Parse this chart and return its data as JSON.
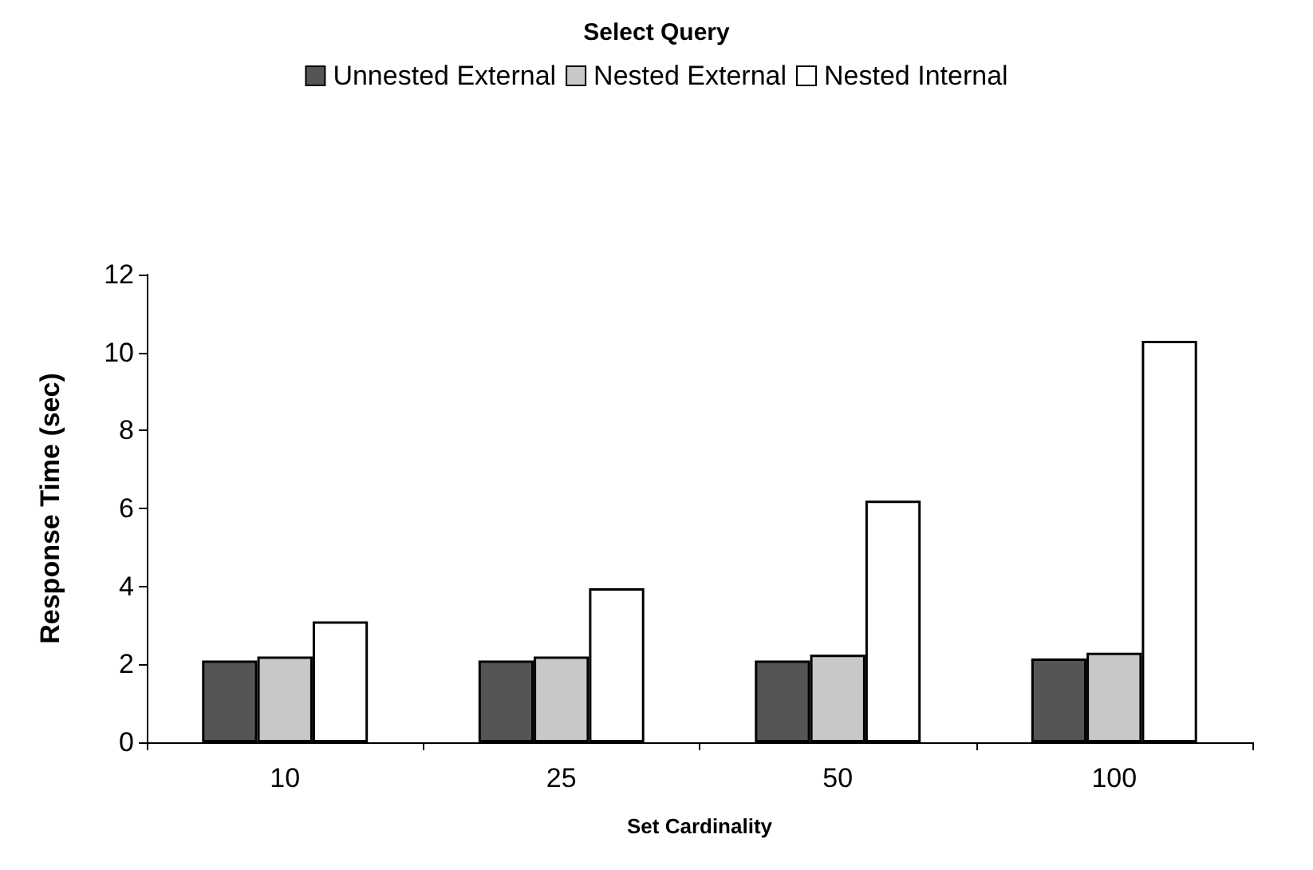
{
  "chart_data": {
    "type": "bar",
    "title": "Select Query",
    "xlabel": "Set Cardinality",
    "ylabel": "Response Time (sec)",
    "categories": [
      "10",
      "25",
      "50",
      "100"
    ],
    "series": [
      {
        "name": "Unnested External",
        "color": "#555555",
        "values": [
          2.1,
          2.1,
          2.1,
          2.15
        ]
      },
      {
        "name": "Nested External",
        "color": "#c8c8c8",
        "values": [
          2.2,
          2.2,
          2.25,
          2.3
        ]
      },
      {
        "name": "Nested Internal",
        "color": "#ffffff",
        "values": [
          3.1,
          3.95,
          6.2,
          10.3
        ]
      }
    ],
    "ylim": [
      0,
      12
    ],
    "yticks": [
      0,
      2,
      4,
      6,
      8,
      10,
      12
    ],
    "grid": false,
    "legend": "top"
  }
}
